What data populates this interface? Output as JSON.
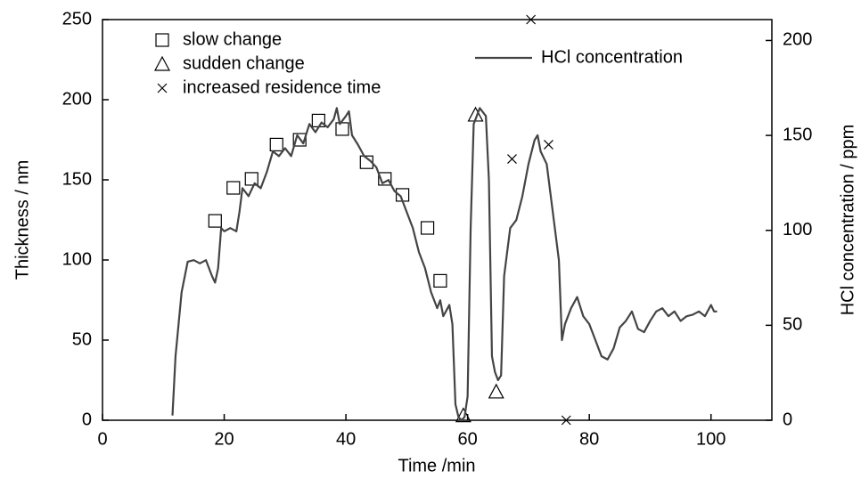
{
  "chart_data": {
    "type": "line",
    "xlabel": "Time /min",
    "ylabel": "Thickness  / nm",
    "y2label": "HCl concentration  / ppm",
    "xlim": [
      0,
      110
    ],
    "xticks": [
      0,
      20,
      40,
      60,
      80,
      100
    ],
    "ylim": [
      0,
      250
    ],
    "yticks": [
      0,
      50,
      100,
      150,
      200,
      250
    ],
    "y2lim": [
      0,
      211
    ],
    "y2ticks": [
      0,
      50,
      100,
      150,
      200
    ],
    "series": [
      {
        "name": "slow change",
        "type": "scatter",
        "marker": "square",
        "color": "#000000",
        "x": [
          18.5,
          21.5,
          24.5,
          28.6,
          32.4,
          35.5,
          39.4,
          43.4,
          46.4,
          49.3,
          53.4,
          55.5
        ],
        "values": [
          124.4,
          145,
          150.6,
          172,
          175,
          187,
          181.7,
          161,
          150.6,
          140.6,
          120,
          87
        ]
      },
      {
        "name": "sudden change",
        "type": "scatter",
        "marker": "triangle",
        "color": "#000000",
        "x": [
          61.3,
          64.7,
          59.3
        ],
        "values": [
          190.6,
          17.8,
          3
        ]
      },
      {
        "name": "increased residence time",
        "type": "scatter",
        "marker": "cross",
        "color": "#000000",
        "x": [
          67.3,
          73.3,
          70.4,
          76.2
        ],
        "values": [
          163,
          172,
          250,
          0
        ]
      },
      {
        "name": "HCl concentration",
        "type": "line",
        "axis": "y2",
        "color": "#444444",
        "x": [
          11.5,
          12,
          13,
          14,
          15,
          16,
          17,
          18,
          18.5,
          19,
          19.5,
          20,
          21,
          22,
          22.5,
          23,
          24,
          25,
          26,
          27,
          28,
          29,
          30,
          31,
          32,
          33,
          34,
          35,
          36,
          37,
          38,
          38.5,
          39,
          40,
          40.5,
          41,
          42,
          43,
          44,
          45,
          46,
          47,
          48,
          49,
          50,
          51,
          52,
          53,
          54,
          55,
          55.5,
          56,
          57,
          57.5,
          58,
          58.5,
          59,
          59.5,
          60,
          60.5,
          61,
          62,
          63,
          63.5,
          64,
          64.5,
          65,
          65.5,
          66,
          67,
          68,
          69,
          70,
          71,
          71.5,
          72,
          73,
          74,
          75,
          75.5,
          76,
          77,
          78,
          79,
          80,
          81,
          82,
          83,
          84,
          85,
          86,
          87,
          88,
          89,
          90,
          91,
          92,
          93,
          94,
          95,
          96,
          97,
          98,
          99,
          100,
          100.5,
          101
        ],
        "values": [
          2.5,
          33.7,
          67.4,
          83.5,
          84.3,
          82.6,
          84.3,
          75.9,
          72.5,
          80.1,
          101.2,
          99.5,
          101.2,
          99.5,
          109.6,
          122.2,
          118,
          124.8,
          122.2,
          130.7,
          141.6,
          139.1,
          143.3,
          139.1,
          150.1,
          145.8,
          156,
          151.7,
          156.8,
          154.3,
          158.5,
          164.4,
          156,
          160.2,
          162.7,
          150.1,
          145,
          139.1,
          136.6,
          133.2,
          124.8,
          126.5,
          120.6,
          118,
          109.6,
          101.2,
          88.5,
          80.1,
          67.4,
          59,
          63.2,
          54.8,
          60.7,
          50.6,
          8.4,
          1.7,
          0,
          1.7,
          12.6,
          101.2,
          156,
          164.4,
          160.2,
          126.5,
          33.7,
          25.3,
          21.1,
          23.6,
          75.9,
          101.2,
          105.4,
          118,
          134.9,
          147.5,
          150.1,
          141.6,
          134.9,
          109.6,
          84.3,
          42.2,
          50.6,
          59,
          64.9,
          54.8,
          50.6,
          42.2,
          33.7,
          32,
          37.9,
          48.9,
          52.3,
          57.3,
          48.1,
          46.4,
          52.3,
          57.3,
          59,
          54.8,
          57.3,
          52.3,
          54.8,
          55.6,
          57.3,
          54.8,
          60.7,
          57.3,
          57.3
        ]
      }
    ]
  }
}
